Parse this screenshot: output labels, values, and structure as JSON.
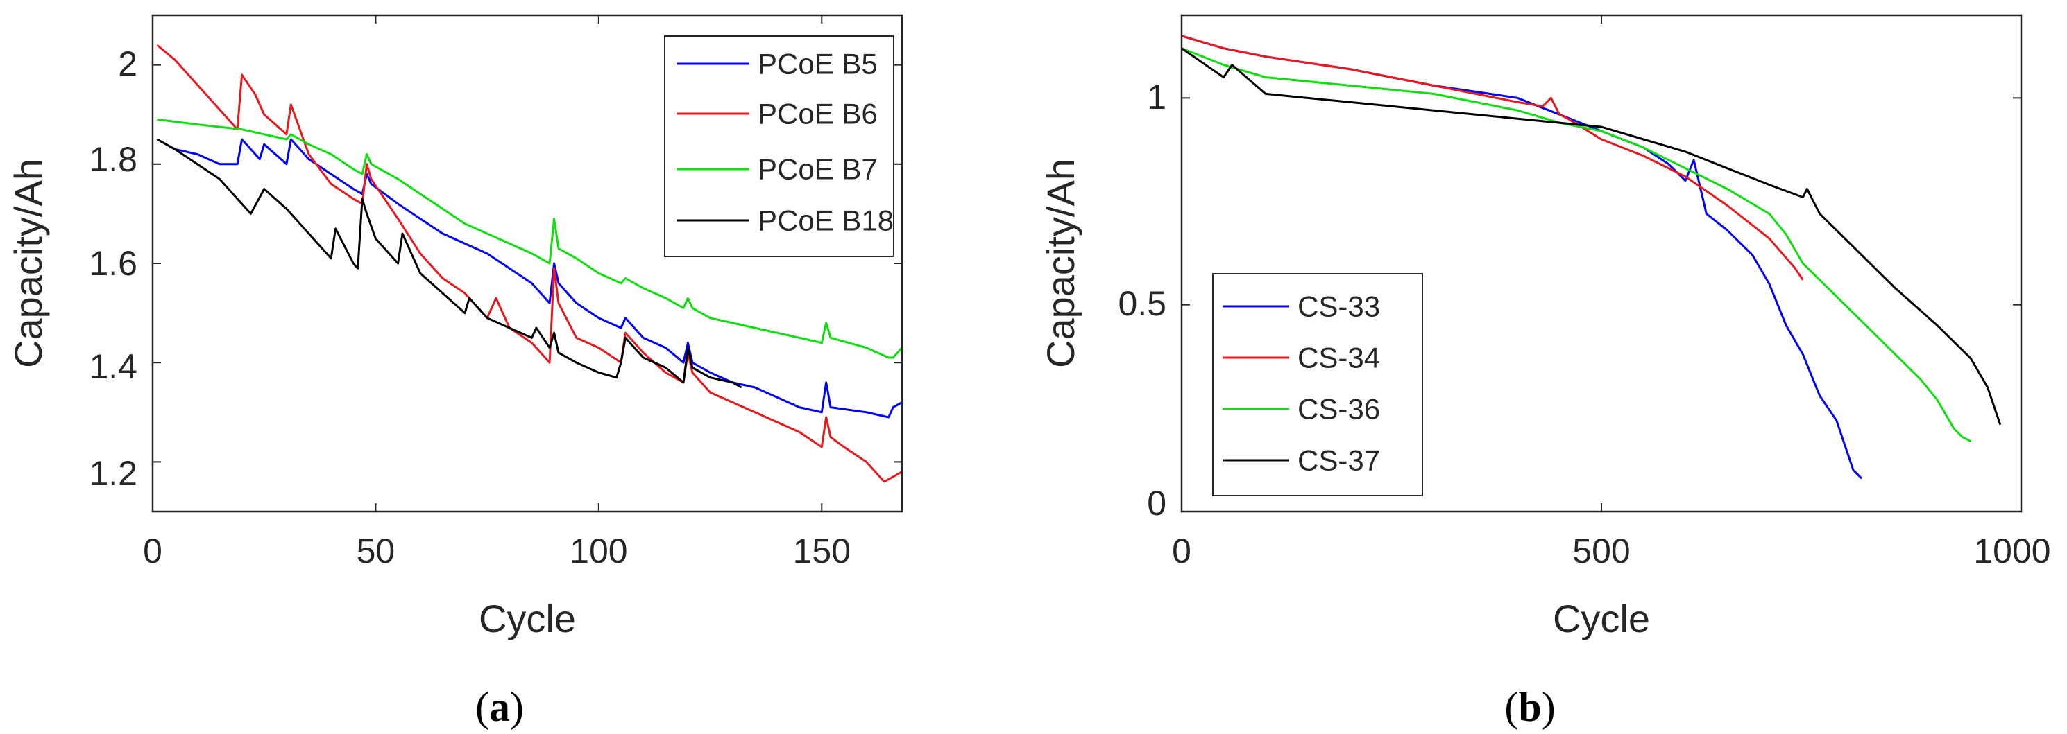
{
  "chart_data": [
    {
      "type": "line",
      "panel": "(a)",
      "panel_letter": "a",
      "xlabel": "Cycle",
      "ylabel": "Capacity/Ah",
      "xlim": [
        0,
        168
      ],
      "ylim": [
        1.1,
        2.1
      ],
      "xticks": [
        0,
        50,
        100,
        150
      ],
      "yticks": [
        1.2,
        1.4,
        1.6,
        1.8,
        2
      ],
      "xtick_labels": [
        "0",
        "50",
        "100",
        "150"
      ],
      "ytick_labels": [
        "1.2",
        "1.4",
        "1.6",
        "1.8",
        "2"
      ],
      "grid": false,
      "legend_position": "top-right",
      "series": [
        {
          "name": "PCoE B5",
          "color": "#0000ff",
          "x": [
            1,
            5,
            10,
            15,
            19,
            20,
            24,
            25,
            30,
            31,
            35,
            40,
            45,
            47,
            48,
            49,
            55,
            60,
            65,
            70,
            75,
            80,
            85,
            89,
            90,
            91,
            95,
            100,
            105,
            106,
            110,
            115,
            119,
            120,
            121,
            125,
            130,
            135,
            140,
            145,
            150,
            151,
            152,
            160,
            165,
            166,
            168
          ],
          "y": [
            1.85,
            1.83,
            1.82,
            1.8,
            1.8,
            1.85,
            1.81,
            1.84,
            1.8,
            1.85,
            1.81,
            1.78,
            1.75,
            1.74,
            1.78,
            1.76,
            1.72,
            1.69,
            1.66,
            1.64,
            1.62,
            1.59,
            1.56,
            1.52,
            1.6,
            1.56,
            1.52,
            1.49,
            1.47,
            1.49,
            1.45,
            1.43,
            1.4,
            1.44,
            1.4,
            1.38,
            1.36,
            1.35,
            1.33,
            1.31,
            1.3,
            1.36,
            1.31,
            1.3,
            1.29,
            1.31,
            1.32
          ]
        },
        {
          "name": "PCoE B6",
          "color": "#e8191c",
          "x": [
            1,
            5,
            10,
            15,
            19,
            20,
            23,
            25,
            30,
            31,
            35,
            40,
            45,
            47,
            48,
            49,
            55,
            60,
            65,
            70,
            75,
            77,
            80,
            85,
            89,
            90,
            91,
            95,
            100,
            105,
            106,
            110,
            115,
            119,
            120,
            121,
            125,
            130,
            135,
            140,
            145,
            150,
            151,
            152,
            155,
            160,
            164,
            166,
            168
          ],
          "y": [
            2.04,
            2.01,
            1.96,
            1.91,
            1.87,
            1.98,
            1.94,
            1.9,
            1.86,
            1.92,
            1.82,
            1.76,
            1.73,
            1.72,
            1.8,
            1.77,
            1.69,
            1.62,
            1.57,
            1.54,
            1.49,
            1.53,
            1.47,
            1.44,
            1.4,
            1.59,
            1.52,
            1.45,
            1.43,
            1.4,
            1.46,
            1.42,
            1.38,
            1.36,
            1.42,
            1.38,
            1.34,
            1.32,
            1.3,
            1.28,
            1.26,
            1.23,
            1.29,
            1.25,
            1.23,
            1.2,
            1.16,
            1.17,
            1.18
          ]
        },
        {
          "name": "PCoE B7",
          "color": "#11dd11",
          "x": [
            1,
            10,
            20,
            30,
            31,
            35,
            40,
            45,
            47,
            48,
            49,
            55,
            60,
            65,
            70,
            75,
            80,
            85,
            89,
            90,
            91,
            95,
            100,
            105,
            106,
            110,
            115,
            119,
            120,
            121,
            125,
            130,
            135,
            140,
            145,
            150,
            151,
            152,
            160,
            165,
            166,
            168
          ],
          "y": [
            1.89,
            1.88,
            1.87,
            1.85,
            1.86,
            1.84,
            1.82,
            1.79,
            1.78,
            1.82,
            1.8,
            1.77,
            1.74,
            1.71,
            1.68,
            1.66,
            1.64,
            1.62,
            1.6,
            1.69,
            1.63,
            1.61,
            1.58,
            1.56,
            1.57,
            1.55,
            1.53,
            1.51,
            1.53,
            1.51,
            1.49,
            1.48,
            1.47,
            1.46,
            1.45,
            1.44,
            1.48,
            1.45,
            1.43,
            1.41,
            1.41,
            1.43
          ]
        },
        {
          "name": "PCoE B18",
          "color": "#000000",
          "x": [
            1,
            5,
            10,
            15,
            20,
            22,
            25,
            30,
            35,
            40,
            41,
            45,
            46,
            47,
            48,
            50,
            55,
            56,
            60,
            65,
            70,
            71,
            75,
            80,
            85,
            86,
            89,
            90,
            91,
            95,
            100,
            104,
            105,
            106,
            110,
            115,
            119,
            120,
            121,
            125,
            130,
            132
          ],
          "y": [
            1.85,
            1.83,
            1.8,
            1.77,
            1.72,
            1.7,
            1.75,
            1.71,
            1.66,
            1.61,
            1.67,
            1.6,
            1.59,
            1.73,
            1.7,
            1.65,
            1.6,
            1.66,
            1.58,
            1.54,
            1.5,
            1.53,
            1.49,
            1.47,
            1.45,
            1.47,
            1.43,
            1.46,
            1.42,
            1.4,
            1.38,
            1.37,
            1.4,
            1.45,
            1.41,
            1.39,
            1.36,
            1.43,
            1.39,
            1.37,
            1.36,
            1.35
          ]
        }
      ]
    },
    {
      "type": "line",
      "panel": "(b)",
      "panel_letter": "b",
      "xlabel": "Cycle",
      "ylabel": "Capacity/Ah",
      "xlim": [
        0,
        1000
      ],
      "ylim": [
        0,
        1.2
      ],
      "xticks": [
        0,
        500,
        1000
      ],
      "yticks": [
        0,
        0.5,
        1
      ],
      "xtick_labels": [
        "0",
        "500",
        "1000"
      ],
      "ytick_labels": [
        "0",
        "0.5",
        "1"
      ],
      "grid": false,
      "legend_position": "bottom-left",
      "series": [
        {
          "name": "CS-33",
          "color": "#0000ff",
          "x": [
            0,
            50,
            100,
            200,
            300,
            400,
            450,
            500,
            550,
            580,
            600,
            610,
            625,
            650,
            680,
            700,
            720,
            740,
            760,
            780,
            800,
            810
          ],
          "y": [
            1.15,
            1.12,
            1.1,
            1.07,
            1.03,
            1.0,
            0.96,
            0.92,
            0.88,
            0.84,
            0.8,
            0.85,
            0.72,
            0.68,
            0.62,
            0.55,
            0.45,
            0.38,
            0.28,
            0.22,
            0.1,
            0.08
          ]
        },
        {
          "name": "CS-34",
          "color": "#e8191c",
          "x": [
            0,
            50,
            100,
            200,
            300,
            400,
            430,
            440,
            450,
            460,
            500,
            550,
            600,
            650,
            700,
            730,
            740
          ],
          "y": [
            1.15,
            1.12,
            1.1,
            1.07,
            1.03,
            0.99,
            0.98,
            1.0,
            0.96,
            0.95,
            0.9,
            0.86,
            0.81,
            0.74,
            0.66,
            0.59,
            0.56
          ]
        },
        {
          "name": "CS-36",
          "color": "#11dd11",
          "x": [
            0,
            50,
            100,
            200,
            300,
            400,
            450,
            500,
            550,
            600,
            650,
            700,
            720,
            740,
            760,
            800,
            850,
            880,
            900,
            920,
            930,
            940
          ],
          "y": [
            1.12,
            1.08,
            1.05,
            1.03,
            1.01,
            0.97,
            0.94,
            0.92,
            0.88,
            0.83,
            0.78,
            0.72,
            0.67,
            0.6,
            0.56,
            0.48,
            0.38,
            0.32,
            0.27,
            0.2,
            0.18,
            0.17
          ]
        },
        {
          "name": "CS-37",
          "color": "#000000",
          "x": [
            0,
            50,
            60,
            100,
            200,
            300,
            400,
            500,
            550,
            600,
            650,
            700,
            740,
            745,
            760,
            800,
            850,
            900,
            940,
            960,
            975
          ],
          "y": [
            1.12,
            1.05,
            1.08,
            1.01,
            0.99,
            0.97,
            0.95,
            0.93,
            0.9,
            0.87,
            0.83,
            0.79,
            0.76,
            0.78,
            0.72,
            0.64,
            0.54,
            0.45,
            0.37,
            0.3,
            0.21
          ]
        }
      ]
    }
  ]
}
